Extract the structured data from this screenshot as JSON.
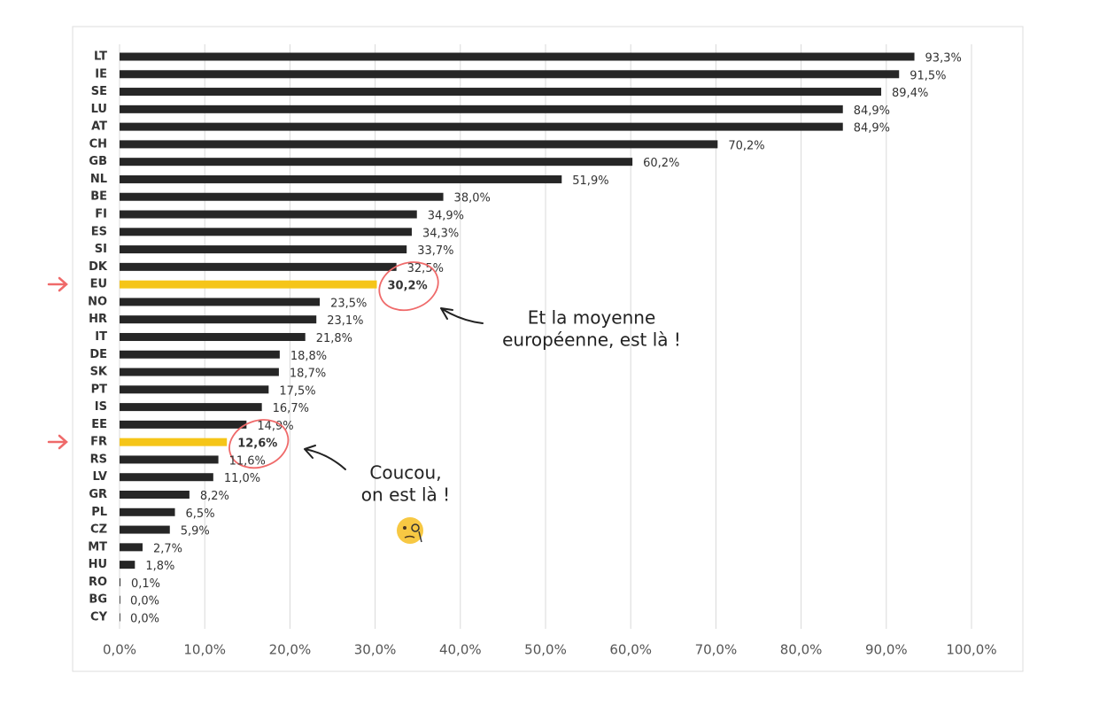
{
  "chart_data": {
    "type": "hbar",
    "categories": [
      "LT",
      "IE",
      "SE",
      "LU",
      "AT",
      "CH",
      "GB",
      "NL",
      "BE",
      "FI",
      "ES",
      "SI",
      "DK",
      "EU",
      "NO",
      "HR",
      "IT",
      "DE",
      "SK",
      "PT",
      "IS",
      "EE",
      "FR",
      "RS",
      "LV",
      "GR",
      "PL",
      "CZ",
      "MT",
      "HU",
      "RO",
      "BG",
      "CY"
    ],
    "values": [
      93.3,
      91.5,
      89.4,
      84.9,
      84.9,
      70.2,
      60.2,
      51.9,
      38.0,
      34.9,
      34.3,
      33.7,
      32.5,
      30.2,
      23.5,
      23.1,
      21.8,
      18.8,
      18.7,
      17.5,
      16.7,
      14.9,
      12.6,
      11.6,
      11.0,
      8.2,
      6.5,
      5.9,
      2.7,
      1.8,
      0.1,
      0.0,
      0.0
    ],
    "value_labels": [
      "93,3%",
      "91,5%",
      "89,4%",
      "84,9%",
      "84,9%",
      "70,2%",
      "60,2%",
      "51,9%",
      "38,0%",
      "34,9%",
      "34,3%",
      "33,7%",
      "32,5%",
      "30,2%",
      "23,5%",
      "23,1%",
      "21,8%",
      "18,8%",
      "18,7%",
      "17,5%",
      "16,7%",
      "14,9%",
      "12,6%",
      "11,6%",
      "11,0%",
      "8,2%",
      "6,5%",
      "5,9%",
      "2,7%",
      "1,8%",
      "0,1%",
      "0,0%",
      "0,0%"
    ],
    "color": "#262626",
    "colors": [
      "#262626",
      "#262626",
      "#262626",
      "#262626",
      "#262626",
      "#262626",
      "#262626",
      "#262626",
      "#262626",
      "#262626",
      "#262626",
      "#262626",
      "#262626",
      "#f5c518",
      "#262626",
      "#262626",
      "#262626",
      "#262626",
      "#262626",
      "#262626",
      "#262626",
      "#262626",
      "#f5c518",
      "#262626",
      "#262626",
      "#262626",
      "#262626",
      "#262626",
      "#262626",
      "#262626",
      "#262626",
      "#262626",
      "#262626"
    ],
    "xlim": [
      0,
      100
    ],
    "xticks": [
      {
        "value": 0,
        "label": "0,0%"
      },
      {
        "value": 10,
        "label": "10,0%"
      },
      {
        "value": 20,
        "label": "20,0%"
      },
      {
        "value": 30,
        "label": "30,0%"
      },
      {
        "value": 40,
        "label": "40,0%"
      },
      {
        "value": 50,
        "label": "50,0%"
      },
      {
        "value": 60,
        "label": "60,0%"
      },
      {
        "value": 70,
        "label": "70,0%"
      },
      {
        "value": 80,
        "label": "80,0%"
      },
      {
        "value": 90,
        "label": "90,0%"
      },
      {
        "value": 100,
        "label": "100,0%"
      }
    ],
    "grid": true,
    "annotations": [
      {
        "lines": [
          "Et la moyenne",
          "européenne, est là !"
        ]
      },
      {
        "lines": [
          "Coucou,",
          "on est là !"
        ]
      }
    ]
  }
}
